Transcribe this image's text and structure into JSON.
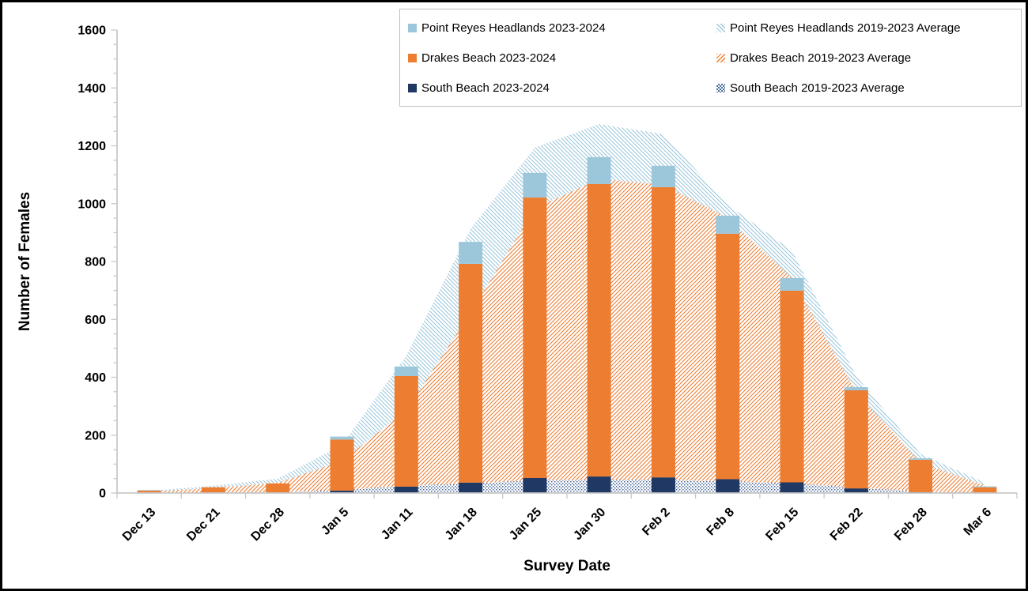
{
  "legend": {
    "items": [
      {
        "label": "Point Reyes Headlands 2023-2024",
        "swatch": "solid-prh"
      },
      {
        "label": "Point Reyes Headlands 2019-2023 Average",
        "swatch": "hatch-prh"
      },
      {
        "label": "Drakes Beach 2023-2024",
        "swatch": "solid-db"
      },
      {
        "label": "Drakes Beach 2019-2023 Average",
        "swatch": "hatch-db"
      },
      {
        "label": "South Beach 2023-2024",
        "swatch": "solid-sb"
      },
      {
        "label": "South Beach 2019-2023 Average",
        "swatch": "dots-sb"
      }
    ]
  },
  "colors": {
    "prh_blue": "#9CC7DB",
    "db_orange": "#ED7D31",
    "sb_navy": "#1F3864",
    "sb_dot_blue": "#46689B",
    "axis_gray": "#C8C8C8",
    "text_black": "#000000"
  },
  "chart_data": {
    "type": "bar",
    "subtype": "stacked bars (2023-2024) over stacked hatched areas (2019-2023 averages)",
    "title": "",
    "xlabel": "Survey Date",
    "ylabel": "Number of Females",
    "ylim": [
      0,
      1600
    ],
    "y_tick_step": 200,
    "y_minor_tick_step": 50,
    "y_ticks": [
      0,
      200,
      400,
      600,
      800,
      1000,
      1200,
      1400,
      1600
    ],
    "legend_position": "top",
    "grid": false,
    "categories": [
      "Dec 13",
      "Dec 21",
      "Dec 28",
      "Jan 5",
      "Jan 11",
      "Jan 18",
      "Jan 25",
      "Jan 30",
      "Feb 2",
      "Feb 8",
      "Feb 15",
      "Feb 22",
      "Feb 28",
      "Mar 6"
    ],
    "bar_series": [
      {
        "name": "South Beach 2023-2024",
        "color": "#1F3864",
        "values": [
          0,
          0,
          0,
          8,
          22,
          36,
          52,
          57,
          54,
          48,
          37,
          16,
          3,
          0
        ]
      },
      {
        "name": "Drakes Beach 2023-2024",
        "color": "#ED7D31",
        "values": [
          8,
          20,
          33,
          177,
          382,
          756,
          969,
          1011,
          1003,
          848,
          662,
          339,
          112,
          20
        ]
      },
      {
        "name": "Point Reyes Headlands 2023-2024",
        "color": "#9CC7DB",
        "values": [
          2,
          0,
          0,
          10,
          33,
          76,
          85,
          93,
          74,
          62,
          44,
          11,
          5,
          3
        ]
      }
    ],
    "bar_totals": [
      10,
      20,
      33,
      195,
      437,
      868,
      1106,
      1161,
      1131,
      958,
      743,
      366,
      120,
      23
    ],
    "area_series": [
      {
        "name": "South Beach 2019-2023 Average",
        "pattern": "dots",
        "color": "#46689B",
        "values": [
          0,
          1,
          2,
          11,
          25,
          33,
          44,
          45,
          45,
          41,
          33,
          19,
          5,
          1
        ]
      },
      {
        "name": "Drakes Beach 2019-2023 Average",
        "pattern": "diagonal-up",
        "color": "#ED7D31",
        "values": [
          5,
          16,
          33,
          100,
          260,
          590,
          940,
          1040,
          1020,
          910,
          710,
          330,
          100,
          25
        ]
      },
      {
        "name": "Point Reyes Headlands 2019-2023 Average",
        "pattern": "diagonal-down",
        "color": "#9CC7DB",
        "values": [
          3,
          8,
          15,
          55,
          190,
          290,
          210,
          190,
          175,
          45,
          95,
          55,
          30,
          10
        ]
      }
    ],
    "area_totals": [
      8,
      25,
      50,
      166,
      475,
      913,
      1194,
      1275,
      1240,
      996,
      838,
      404,
      135,
      36
    ]
  }
}
